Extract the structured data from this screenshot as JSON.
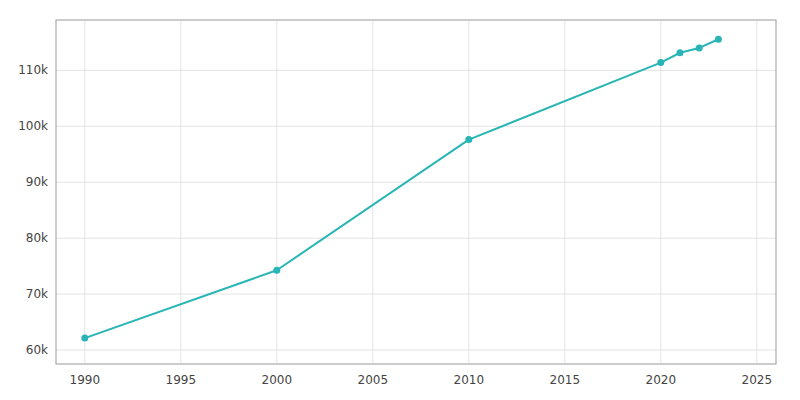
{
  "chart_data": {
    "type": "line",
    "x": [
      1990,
      2000,
      2010,
      2020,
      2021,
      2022,
      2023
    ],
    "values": [
      62126,
      74267,
      97618,
      111385,
      113143,
      114002,
      115559
    ],
    "color": "#29b5b5",
    "marker": "circle",
    "xlim": [
      1988.5,
      2026
    ],
    "ylim": [
      57500,
      119000
    ],
    "xticks": [
      1990,
      1995,
      2000,
      2005,
      2010,
      2015,
      2020,
      2025
    ],
    "yticks": [
      {
        "value": 60000,
        "label": "60k"
      },
      {
        "value": 70000,
        "label": "70k"
      },
      {
        "value": 80000,
        "label": "80k"
      },
      {
        "value": 90000,
        "label": "90k"
      },
      {
        "value": 100000,
        "label": "100k"
      },
      {
        "value": 110000,
        "label": "110k"
      }
    ],
    "grid": true
  }
}
